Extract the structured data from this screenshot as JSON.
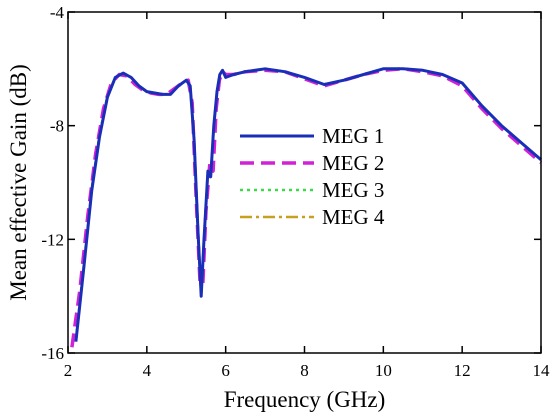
{
  "chart_data": {
    "type": "line",
    "title": "",
    "xlabel": "Frequency (GHz)",
    "ylabel": "Mean effective Gain (dB)",
    "xlim": [
      2,
      14
    ],
    "ylim": [
      -16,
      -4
    ],
    "xticks": [
      2,
      4,
      6,
      8,
      10,
      12,
      14
    ],
    "yticks": [
      -16,
      -12,
      -8,
      -4
    ],
    "grid": false,
    "legend_position": "center",
    "series": [
      {
        "name": "MEG 1",
        "color": "#1a2fb8",
        "dash": "solid",
        "x": [
          2.2,
          2.4,
          2.6,
          2.8,
          3.0,
          3.2,
          3.4,
          3.6,
          3.8,
          4.0,
          4.2,
          4.4,
          4.6,
          4.8,
          5.0,
          5.1,
          5.2,
          5.3,
          5.38,
          5.45,
          5.55,
          5.62,
          5.7,
          5.78,
          5.85,
          5.92,
          6.0,
          6.2,
          6.5,
          7.0,
          7.5,
          8.0,
          8.5,
          9.0,
          9.5,
          10.0,
          10.5,
          11.0,
          11.5,
          12.0,
          12.5,
          13.0,
          13.5,
          14.0
        ],
        "y": [
          -15.6,
          -13.0,
          -10.3,
          -8.4,
          -7.0,
          -6.3,
          -6.15,
          -6.3,
          -6.6,
          -6.8,
          -6.85,
          -6.9,
          -6.9,
          -6.6,
          -6.4,
          -6.6,
          -8.5,
          -11.8,
          -14.0,
          -12.0,
          -9.6,
          -9.8,
          -8.0,
          -6.8,
          -6.2,
          -6.05,
          -6.3,
          -6.2,
          -6.1,
          -6.0,
          -6.1,
          -6.3,
          -6.55,
          -6.4,
          -6.2,
          -6.0,
          -6.0,
          -6.05,
          -6.2,
          -6.5,
          -7.3,
          -8.0,
          -8.6,
          -9.2
        ]
      },
      {
        "name": "MEG 2",
        "color": "#d020d8",
        "dash": "dashed",
        "x": [
          2.1,
          2.3,
          2.5,
          2.7,
          2.9,
          3.1,
          3.3,
          3.5,
          3.7,
          3.9,
          4.1,
          4.3,
          4.5,
          4.7,
          4.9,
          5.05,
          5.15,
          5.25,
          5.35,
          5.42,
          5.5,
          5.6,
          5.68,
          5.76,
          5.84,
          5.92,
          6.0,
          6.2,
          6.5,
          7.0,
          7.5,
          8.0,
          8.5,
          9.0,
          9.5,
          10.0,
          10.5,
          11.0,
          11.5,
          12.0,
          12.5,
          13.0,
          13.5,
          14.0
        ],
        "y": [
          -15.8,
          -13.8,
          -11.2,
          -9.0,
          -7.4,
          -6.5,
          -6.2,
          -6.25,
          -6.55,
          -6.75,
          -6.85,
          -6.9,
          -6.9,
          -6.7,
          -6.5,
          -6.4,
          -7.2,
          -10.5,
          -13.5,
          -13.6,
          -11.0,
          -9.3,
          -9.6,
          -7.4,
          -6.4,
          -6.1,
          -6.2,
          -6.2,
          -6.1,
          -6.05,
          -6.1,
          -6.35,
          -6.6,
          -6.4,
          -6.2,
          -6.05,
          -6.0,
          -6.1,
          -6.25,
          -6.6,
          -7.4,
          -8.1,
          -8.7,
          -9.3
        ]
      },
      {
        "name": "MEG 3",
        "color": "#3fd84a",
        "dash": "dotted",
        "x": [
          2.2,
          2.4,
          2.6,
          2.8,
          3.0,
          3.2,
          3.4,
          3.6,
          3.8,
          4.0,
          4.2,
          4.4,
          4.6,
          4.8,
          5.0,
          5.1,
          5.2,
          5.3,
          5.38,
          5.45,
          5.55,
          5.62,
          5.7,
          5.78,
          5.85,
          5.92,
          6.0,
          6.2,
          6.5,
          7.0,
          7.5,
          8.0,
          8.5,
          9.0,
          9.5,
          10.0,
          10.5,
          11.0,
          11.5,
          12.0,
          12.5,
          13.0,
          13.5,
          14.0
        ],
        "y": [
          -15.5,
          -12.9,
          -10.2,
          -8.3,
          -6.95,
          -6.3,
          -6.15,
          -6.3,
          -6.6,
          -6.8,
          -6.85,
          -6.9,
          -6.9,
          -6.6,
          -6.4,
          -6.6,
          -8.5,
          -11.8,
          -14.0,
          -12.0,
          -9.6,
          -9.8,
          -8.0,
          -6.8,
          -6.2,
          -6.05,
          -6.3,
          -6.2,
          -6.1,
          -6.0,
          -6.1,
          -6.3,
          -6.55,
          -6.4,
          -6.2,
          -6.0,
          -6.0,
          -6.05,
          -6.2,
          -6.5,
          -7.3,
          -8.0,
          -8.6,
          -9.2
        ]
      },
      {
        "name": "MEG 4",
        "color": "#c8a020",
        "dash": "dashdot",
        "x": [
          2.2,
          2.4,
          2.6,
          2.8,
          3.0,
          3.2,
          3.4,
          3.6,
          3.8,
          4.0,
          4.2,
          4.4,
          4.6,
          4.8,
          5.0,
          5.1,
          5.2,
          5.3,
          5.38,
          5.45,
          5.55,
          5.62,
          5.7,
          5.78,
          5.85,
          5.92,
          6.0,
          6.2,
          6.5,
          7.0,
          7.5,
          8.0,
          8.5,
          9.0,
          9.5,
          10.0,
          10.5,
          11.0,
          11.5,
          12.0,
          12.5,
          13.0,
          13.5,
          14.0
        ],
        "y": [
          -15.6,
          -13.0,
          -10.3,
          -8.4,
          -7.0,
          -6.3,
          -6.15,
          -6.3,
          -6.6,
          -6.8,
          -6.85,
          -6.9,
          -6.9,
          -6.6,
          -6.4,
          -6.6,
          -8.5,
          -11.8,
          -14.0,
          -12.0,
          -9.6,
          -9.8,
          -8.0,
          -6.8,
          -6.2,
          -6.05,
          -6.3,
          -6.2,
          -6.1,
          -6.0,
          -6.1,
          -6.3,
          -6.55,
          -6.4,
          -6.2,
          -6.0,
          -6.0,
          -6.05,
          -6.2,
          -6.5,
          -7.3,
          -8.0,
          -8.6,
          -9.2
        ]
      }
    ]
  }
}
